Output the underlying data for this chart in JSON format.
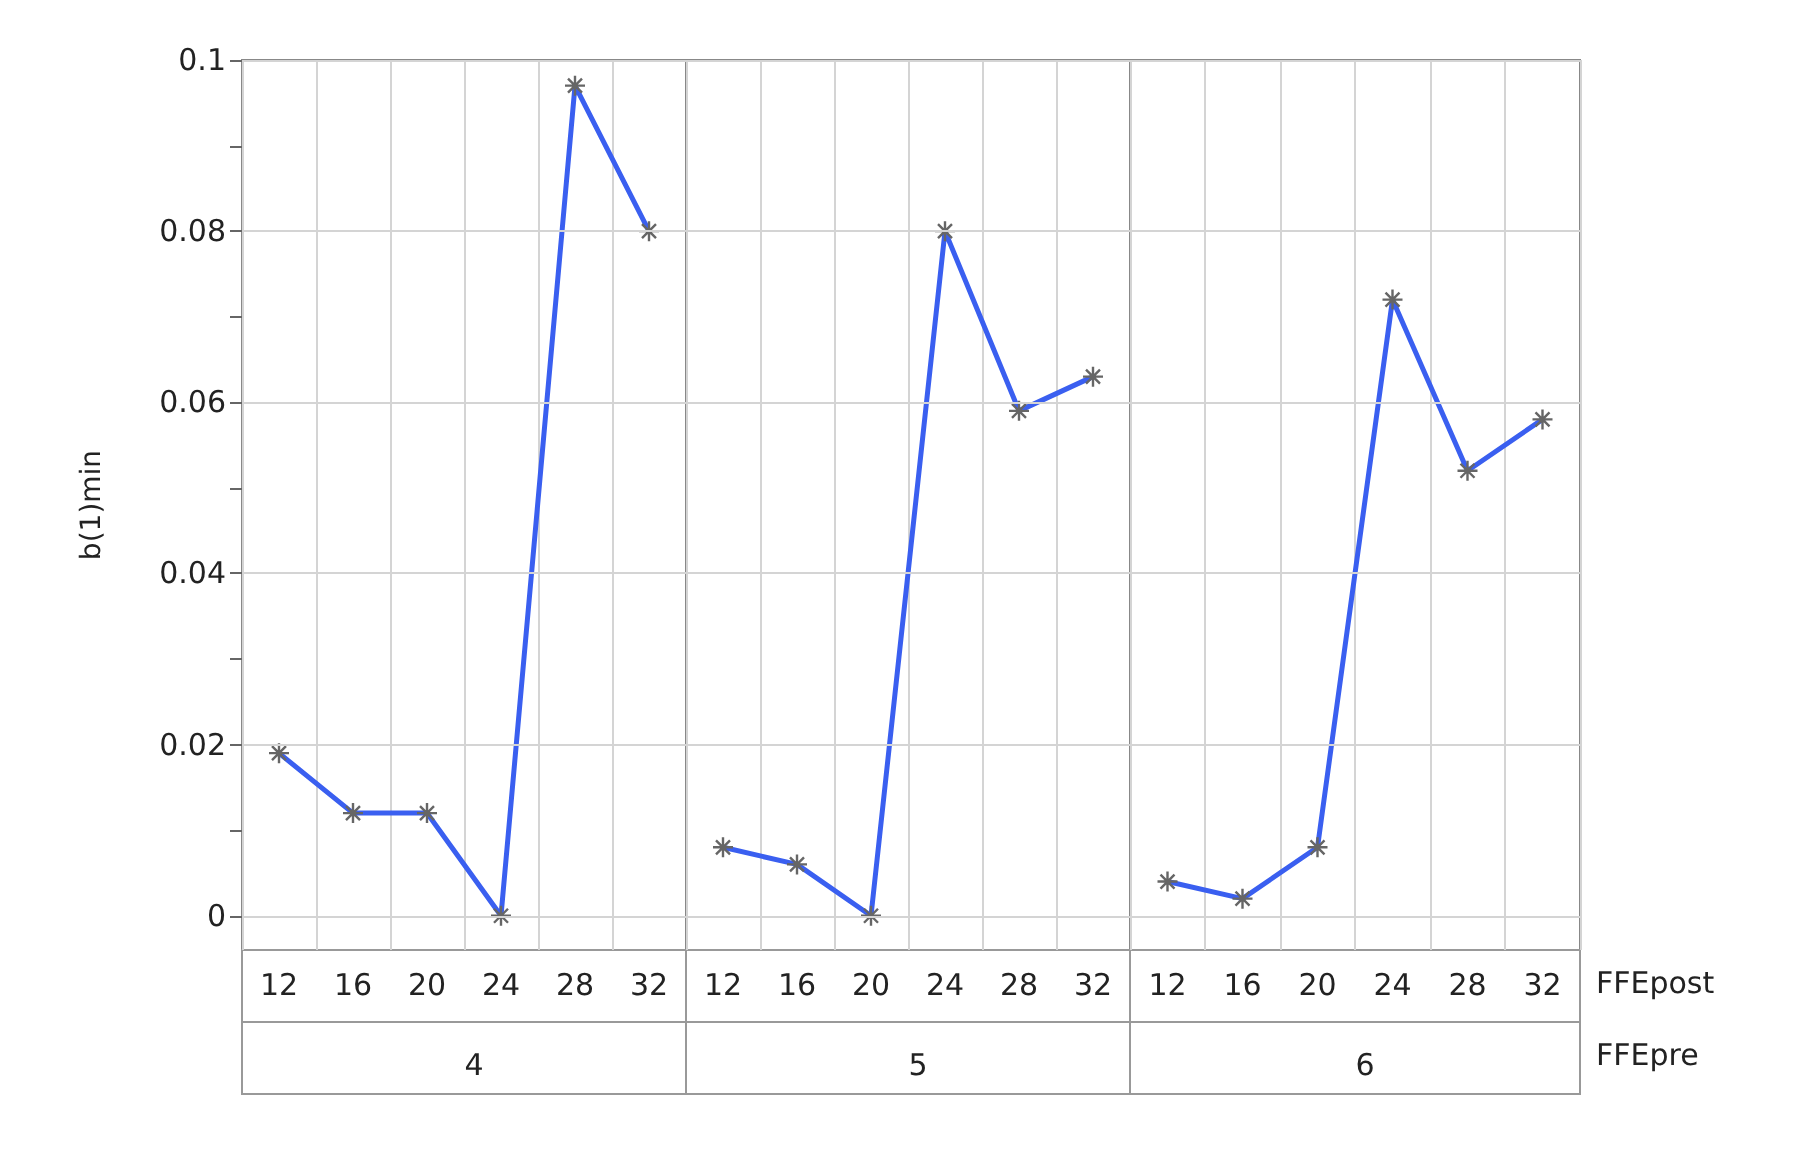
{
  "chart_data": [
    {
      "type": "line",
      "title": "4",
      "ylabel": "b(1)min",
      "categories": [
        "12",
        "16",
        "20",
        "24",
        "28",
        "32"
      ],
      "series": [
        {
          "color": "#3a5ff0",
          "values": [
            0.019,
            0.012,
            0.012,
            0,
            0.097,
            0.08
          ]
        }
      ],
      "ylim": [
        -0.004,
        0.1
      ],
      "yticks": [
        0,
        {
          "value": 0.01,
          "label": null
        },
        0.02,
        {
          "value": 0.03,
          "label": null
        },
        0.04,
        {
          "value": 0.05,
          "label": null
        },
        0.06,
        {
          "value": 0.07,
          "label": null
        },
        0.08,
        {
          "value": 0.09,
          "label": null
        },
        0.1
      ],
      "grid": true,
      "marker": "cross",
      "line_style": "solid"
    },
    {
      "type": "line",
      "title": "5",
      "categories": [
        "12",
        "16",
        "20",
        "24",
        "28",
        "32"
      ],
      "series": [
        {
          "color": "#3a5ff0",
          "values": [
            0.008,
            0.006,
            0,
            0.08,
            0.059,
            0.063
          ]
        }
      ],
      "ylim": [
        -0.004,
        0.1
      ],
      "yticks": [
        0,
        0.02,
        0.04,
        0.06,
        0.08,
        0.1
      ],
      "tick_labels": "x",
      "grid": true,
      "marker": "cross",
      "line_style": "solid"
    },
    {
      "type": "line",
      "title": "6",
      "xlabel": "FFEpost",
      "annotations": [
        "FFEpre"
      ],
      "categories": [
        "12",
        "16",
        "20",
        "24",
        "28",
        "32"
      ],
      "series": [
        {
          "color": "#3a5ff0",
          "values": [
            0.004,
            0.002,
            0.008,
            0.072,
            0.052,
            0.058
          ]
        }
      ],
      "ylim": [
        -0.004,
        0.1
      ],
      "yticks": [
        0,
        0.02,
        0.04,
        0.06,
        0.08,
        0.1
      ],
      "tick_labels": "x",
      "grid": true,
      "marker": "cross",
      "line_style": "solid"
    }
  ]
}
